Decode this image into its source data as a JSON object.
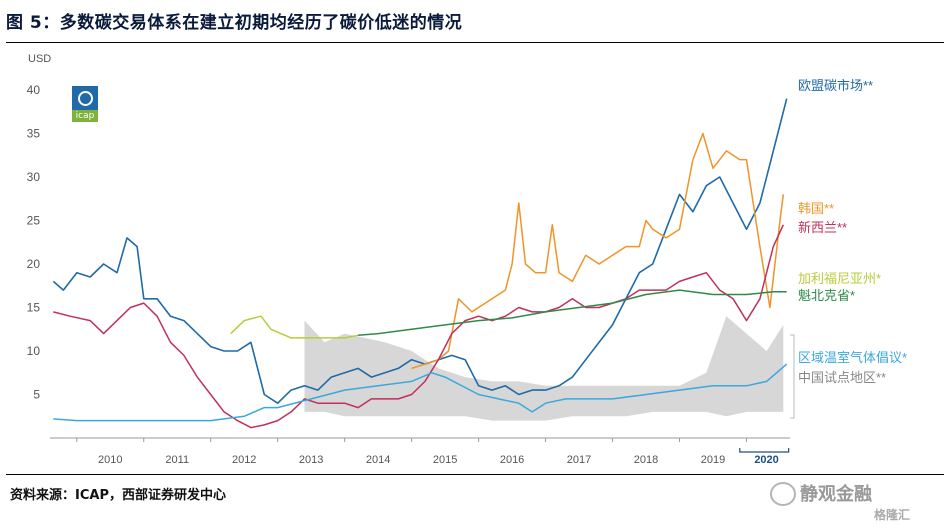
{
  "title": "图 5：多数碳交易体系在建立初期均经历了碳价低迷的情况",
  "source": "资料来源：ICAP，西部证券研发中心",
  "watermark": "静观金融",
  "watermark2": "格隆汇",
  "logo_text": "icap",
  "chart_data": {
    "type": "line",
    "ylabel": "USD",
    "ylim": [
      0,
      40
    ],
    "y_ticks": [
      5,
      10,
      15,
      20,
      25,
      30,
      35,
      40
    ],
    "x_ticks": [
      "2010",
      "2011",
      "2012",
      "2013",
      "2014",
      "2015",
      "2016",
      "2017",
      "2018",
      "2019",
      "2020"
    ],
    "xlim": [
      2009.6,
      2020.65
    ],
    "grid": false,
    "legend_position": "right",
    "series": [
      {
        "name": "欧盟碳市场**",
        "color": "#1f6aa8",
        "x": [
          2009.65,
          2009.8,
          2010.0,
          2010.2,
          2010.4,
          2010.6,
          2010.75,
          2010.9,
          2011.0,
          2011.2,
          2011.4,
          2011.6,
          2011.8,
          2012.0,
          2012.2,
          2012.4,
          2012.6,
          2012.8,
          2013.0,
          2013.2,
          2013.4,
          2013.6,
          2013.8,
          2014.0,
          2014.2,
          2014.4,
          2014.6,
          2014.8,
          2015.0,
          2015.2,
          2015.4,
          2015.6,
          2015.8,
          2016.0,
          2016.2,
          2016.4,
          2016.6,
          2016.8,
          2017.0,
          2017.2,
          2017.4,
          2017.6,
          2017.8,
          2018.0,
          2018.2,
          2018.4,
          2018.6,
          2018.8,
          2019.0,
          2019.2,
          2019.4,
          2019.6,
          2019.8,
          2020.0,
          2020.2,
          2020.4,
          2020.6
        ],
        "y": [
          18,
          17,
          19,
          18.5,
          20,
          19,
          23,
          22,
          16,
          16,
          14,
          13.5,
          12,
          10.5,
          10,
          10,
          11,
          5,
          4,
          5.5,
          6,
          5.5,
          7,
          7.5,
          8,
          7,
          7.5,
          8,
          9,
          8.5,
          9,
          9.5,
          9,
          6,
          5.5,
          6,
          5,
          5.5,
          5.5,
          6,
          7,
          9,
          11,
          13,
          16,
          19,
          20,
          24,
          28,
          26,
          29,
          30,
          27,
          24,
          27,
          33,
          39
        ]
      },
      {
        "name": "韩国**",
        "color": "#f0942a",
        "x": [
          2015.0,
          2015.2,
          2015.4,
          2015.55,
          2015.7,
          2015.9,
          2016.0,
          2016.2,
          2016.4,
          2016.5,
          2016.6,
          2016.7,
          2016.85,
          2017.0,
          2017.1,
          2017.2,
          2017.4,
          2017.6,
          2017.8,
          2018.0,
          2018.2,
          2018.4,
          2018.5,
          2018.6,
          2018.8,
          2019.0,
          2019.2,
          2019.35,
          2019.5,
          2019.7,
          2019.9,
          2020.0,
          2020.2,
          2020.35,
          2020.5,
          2020.55
        ],
        "y": [
          8,
          8.5,
          9,
          10,
          16,
          14.5,
          15,
          16,
          17,
          20,
          27,
          20,
          19,
          19,
          24.5,
          19,
          18,
          21,
          20,
          21,
          22,
          22,
          25,
          24,
          23,
          24,
          32,
          35,
          31,
          33,
          32,
          32,
          22,
          15,
          25,
          28
        ]
      },
      {
        "name": "新西兰**",
        "color": "#c0305a",
        "x": [
          2009.65,
          2009.9,
          2010.2,
          2010.4,
          2010.6,
          2010.8,
          2011.0,
          2011.2,
          2011.4,
          2011.6,
          2011.8,
          2012.0,
          2012.2,
          2012.4,
          2012.6,
          2012.8,
          2013.0,
          2013.2,
          2013.4,
          2013.6,
          2013.8,
          2014.0,
          2014.2,
          2014.4,
          2014.6,
          2014.8,
          2015.0,
          2015.2,
          2015.4,
          2015.6,
          2015.8,
          2016.0,
          2016.2,
          2016.4,
          2016.6,
          2016.8,
          2017.0,
          2017.2,
          2017.4,
          2017.6,
          2017.8,
          2018.0,
          2018.2,
          2018.4,
          2018.6,
          2018.8,
          2019.0,
          2019.2,
          2019.4,
          2019.6,
          2019.8,
          2020.0,
          2020.2,
          2020.4,
          2020.55
        ],
        "y": [
          14.5,
          14,
          13.5,
          12,
          13.5,
          15,
          15.5,
          14,
          11,
          9.5,
          7,
          5,
          3,
          2,
          1.2,
          1.5,
          2,
          3,
          4.5,
          4,
          4,
          4,
          3.5,
          4.5,
          4.5,
          4.5,
          5,
          6.5,
          9,
          12,
          13.5,
          14,
          13.5,
          14,
          15,
          14.5,
          14.5,
          15,
          16,
          15,
          15,
          15.5,
          16,
          17,
          17,
          17,
          18,
          18.5,
          19,
          17,
          16,
          13.5,
          16,
          22,
          24.5
        ]
      },
      {
        "name": "加利福尼亚州*",
        "color": "#b8cc3a",
        "x": [
          2012.3,
          2012.5,
          2012.75,
          2012.9,
          2013.2,
          2013.6,
          2014.0,
          2014.2
        ],
        "y": [
          12,
          13.5,
          14,
          12.5,
          11.5,
          11.5,
          11.5,
          11.8
        ]
      },
      {
        "name": "魁北克省*",
        "color": "#2f8a4a",
        "x": [
          2014.2,
          2014.5,
          2015.0,
          2015.5,
          2016.0,
          2016.5,
          2017.0,
          2017.5,
          2018.0,
          2018.5,
          2019.0,
          2019.5,
          2020.0,
          2020.4,
          2020.6
        ],
        "y": [
          11.8,
          12,
          12.5,
          13,
          13.5,
          13.8,
          14.5,
          15,
          15.5,
          16.5,
          17,
          16.5,
          16.5,
          16.8,
          16.8
        ]
      },
      {
        "name": "区域温室气体倡议*",
        "color": "#3aa8dc",
        "x": [
          2009.65,
          2010.0,
          2011.0,
          2012.0,
          2012.5,
          2012.8,
          2013.0,
          2013.5,
          2014.0,
          2014.5,
          2015.0,
          2015.3,
          2015.5,
          2016.0,
          2016.3,
          2016.6,
          2016.8,
          2017.0,
          2017.3,
          2018.0,
          2018.5,
          2019.0,
          2019.5,
          2020.0,
          2020.3,
          2020.6
        ],
        "y": [
          2.2,
          2,
          2,
          2,
          2.5,
          3.5,
          3.5,
          4.5,
          5.5,
          6,
          6.5,
          7.5,
          7,
          5,
          4.5,
          4,
          3,
          4,
          4.5,
          4.5,
          5,
          5.5,
          6,
          6,
          6.5,
          8.5
        ]
      },
      {
        "name": "中国试点地区**",
        "color": "#d0d0d0",
        "x": [
          2013.4,
          2013.7,
          2014.0,
          2014.3,
          2014.6,
          2015.0,
          2015.4,
          2015.8,
          2016.2,
          2016.6,
          2017.0,
          2017.4,
          2017.8,
          2018.2,
          2018.6,
          2019.0,
          2019.4,
          2019.7,
          2020.0,
          2020.3,
          2020.55
        ],
        "y": [
          13.5,
          11,
          12,
          11.5,
          11,
          10,
          8,
          7,
          6.5,
          6.5,
          6,
          6,
          6,
          6,
          6,
          6,
          7.5,
          14,
          12,
          10,
          13
        ],
        "low": [
          3,
          3,
          2.5,
          2.5,
          2.5,
          2.5,
          2.5,
          2.5,
          2,
          2,
          2,
          2.5,
          2.5,
          2.5,
          3,
          3,
          3,
          2.5,
          3,
          3,
          3
        ]
      }
    ]
  }
}
